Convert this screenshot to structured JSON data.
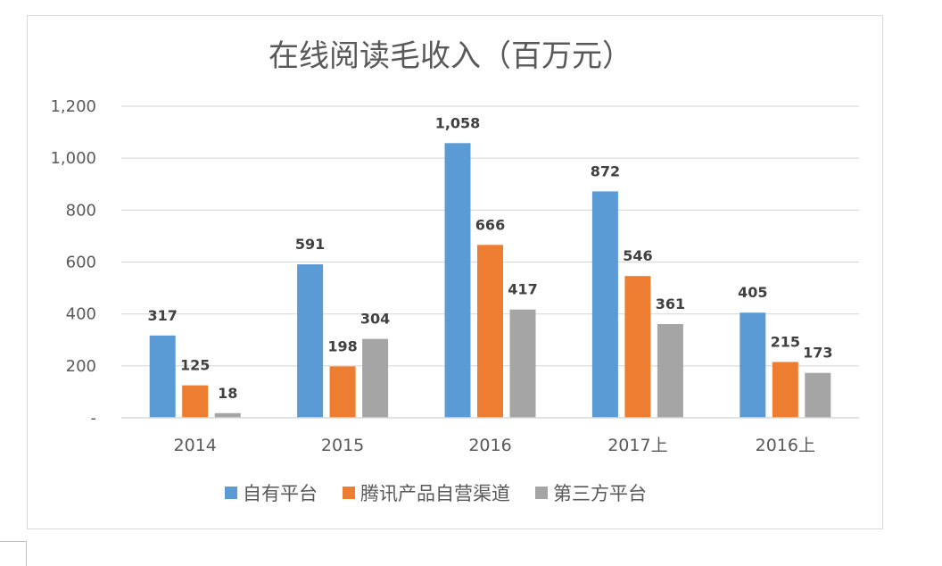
{
  "chart_data": {
    "type": "bar",
    "title": "在线阅读毛收入（百万元）",
    "categories": [
      "2014",
      "2015",
      "2016",
      "2017上",
      "2016上"
    ],
    "series": [
      {
        "name": "自有平台",
        "color": "#5b9bd5",
        "values": [
          317,
          591,
          1058,
          872,
          405
        ],
        "labels": [
          "317",
          "591",
          "1,058",
          "872",
          "405"
        ]
      },
      {
        "name": "腾讯产品自营渠道",
        "color": "#ed7d31",
        "values": [
          125,
          198,
          666,
          546,
          215
        ],
        "labels": [
          "125",
          "198",
          "666",
          "546",
          "215"
        ]
      },
      {
        "name": "第三方平台",
        "color": "#a5a5a5",
        "values": [
          18,
          304,
          417,
          361,
          173
        ],
        "labels": [
          "18",
          "304",
          "417",
          "361",
          "173"
        ]
      }
    ],
    "yticks": [
      0,
      200,
      400,
      600,
      800,
      1000,
      1200
    ],
    "ytick_labels": [
      "-",
      "200",
      "400",
      "600",
      "800",
      "1,000",
      "1,200"
    ],
    "ylim": [
      0,
      1200
    ],
    "xlabel": "",
    "ylabel": "",
    "grid": true,
    "legend_position": "bottom"
  }
}
